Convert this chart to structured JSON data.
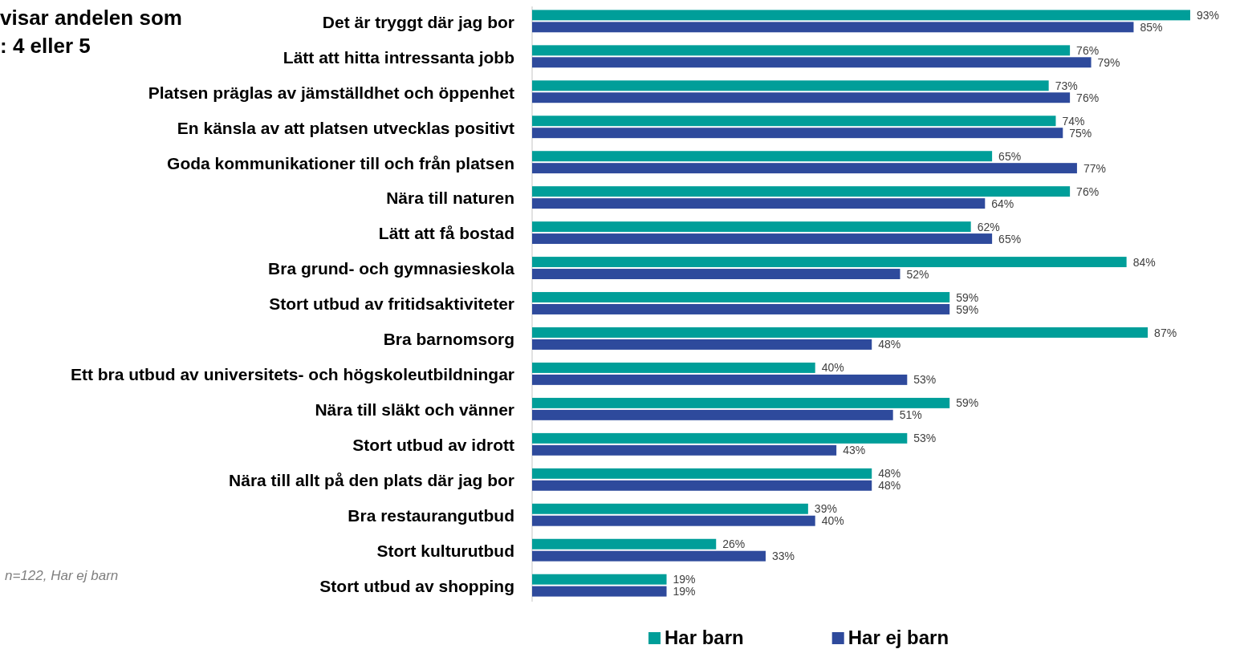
{
  "chart_data": {
    "type": "bar",
    "orientation": "horizontal",
    "title": "visar andelen som",
    "subtitle": ": 4 eller 5",
    "annotations": [
      "n=122, Har ej barn"
    ],
    "categories": [
      "Det är tryggt där jag bor",
      "Lätt att hitta intressanta jobb",
      "Platsen präglas av jämställdhet och öppenhet",
      "En känsla av att platsen utvecklas positivt ",
      "Goda kommunikationer till och från platsen",
      "Nära till naturen ",
      "Lätt att få bostad",
      "Bra grund- och gymnasieskola",
      "Stort utbud av fritidsaktiviteter",
      "Bra barnomsorg ",
      "Ett bra utbud av universitets- och högskoleutbildningar",
      "Nära till släkt och vänner",
      "Stort utbud av idrott",
      "Nära till allt på den plats där jag bor ",
      "Bra restaurangutbud",
      "Stort kulturutbud",
      "Stort utbud av shopping"
    ],
    "series": [
      {
        "name": "Har barn",
        "color": "#009e99",
        "values": [
          93,
          76,
          73,
          74,
          65,
          76,
          62,
          84,
          59,
          87,
          40,
          59,
          53,
          48,
          39,
          26,
          19
        ],
        "value_labels": [
          "93%",
          "76%",
          "73%",
          "74%",
          "65%",
          "76%",
          "62%",
          "84%",
          "59%",
          "87%",
          "40%",
          "59%",
          "53%",
          "48%",
          "39%",
          "26%",
          "19%"
        ]
      },
      {
        "name": "Har ej barn",
        "color": "#2e4a9c",
        "values": [
          85,
          79,
          76,
          75,
          77,
          64,
          65,
          52,
          59,
          48,
          53,
          51,
          43,
          48,
          40,
          33,
          19
        ],
        "value_labels": [
          "85%",
          "79%",
          "76%",
          "75%",
          "77%",
          "64%",
          "65%",
          "52%",
          "59%",
          "48%",
          "53%",
          "51%",
          "43%",
          "48%",
          "40%",
          "33%",
          "19%"
        ]
      }
    ],
    "tick_labels": "y",
    "legend": "bottom"
  }
}
